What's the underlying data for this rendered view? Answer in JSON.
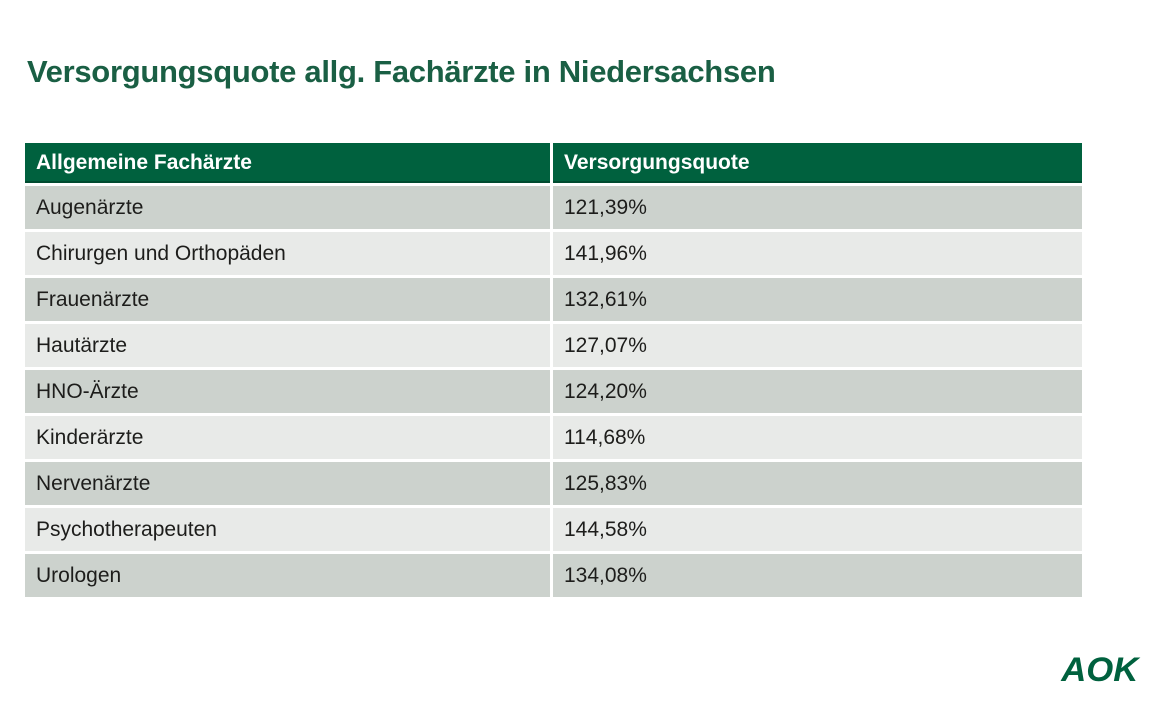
{
  "page": {
    "title": "Versorgungsquote allg. Fachärzte in Niedersachsen"
  },
  "table": {
    "columns": [
      {
        "label": "Allgemeine Fachärzte"
      },
      {
        "label": "Versorgungsquote"
      }
    ],
    "rows": [
      {
        "label": "Augenärzte",
        "value": "121,39%"
      },
      {
        "label": "Chirurgen und Orthopäden",
        "value": "141,96%"
      },
      {
        "label": "Frauenärzte",
        "value": "132,61%"
      },
      {
        "label": "Hautärzte",
        "value": "127,07%"
      },
      {
        "label": "HNO-Ärzte",
        "value": "124,20%"
      },
      {
        "label": "Kinderärzte",
        "value": "114,68%"
      },
      {
        "label": "Nervenärzte",
        "value": "125,83%"
      },
      {
        "label": "Psychotherapeuten",
        "value": "144,58%"
      },
      {
        "label": "Urologen",
        "value": "134,08%"
      }
    ]
  },
  "logo": {
    "text": "AOK"
  },
  "colors": {
    "title_green": "#1a5f44",
    "header_green": "#00613e",
    "row_dark": "#ccd2cd",
    "row_light": "#e8eae8",
    "text": "#1d1d1b",
    "logo_green": "#00613e"
  },
  "chart_data": {
    "type": "table",
    "title": "Versorgungsquote allg. Fachärzte in Niedersachsen",
    "columns": [
      "Allgemeine Fachärzte",
      "Versorgungsquote"
    ],
    "categories": [
      "Augenärzte",
      "Chirurgen und Orthopäden",
      "Frauenärzte",
      "Hautärzte",
      "HNO-Ärzte",
      "Kinderärzte",
      "Nervenärzte",
      "Psychotherapeuten",
      "Urologen"
    ],
    "values": [
      121.39,
      141.96,
      132.61,
      127.07,
      124.2,
      114.68,
      125.83,
      144.58,
      134.08
    ],
    "unit": "%",
    "value_format": "comma-decimal percent"
  }
}
